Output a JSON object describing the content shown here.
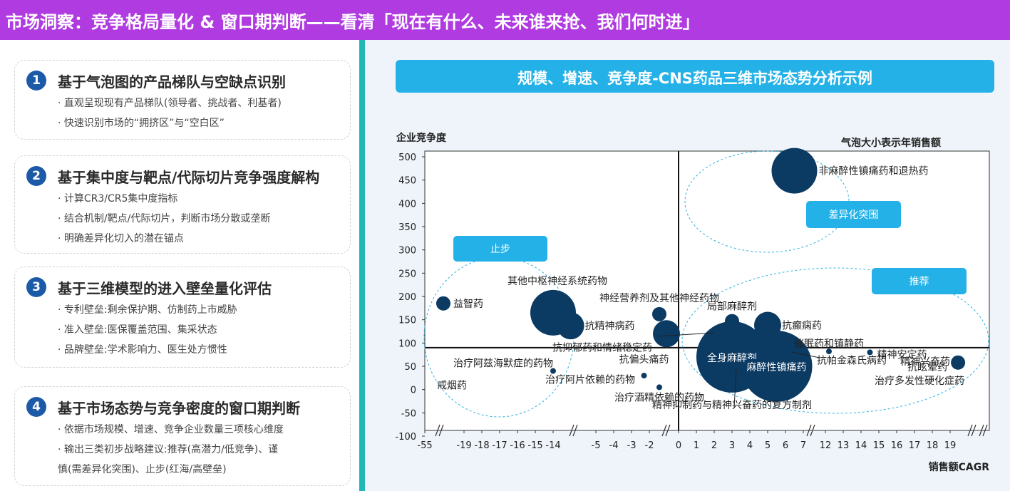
{
  "header": {
    "title": "市场洞察：竞争格局量化 & 窗口期判断——看清「现在有什么、未来谁来抢、我们何时进」"
  },
  "cards": [
    {
      "num": "1",
      "title": "基于气泡图的产品梯队与空缺点识别",
      "items": [
        "· 直观呈现现有产品梯队(领导者、挑战者、利基者)",
        "· 快速识别市场的“拥挤区”与“空白区”"
      ]
    },
    {
      "num": "2",
      "title": "基于集中度与靶点/代际切片竞争强度解构",
      "items": [
        "· 计算CR3/CR5集中度指标",
        "· 结合机制/靶点/代际切片，判断市场分散或垄断",
        "· 明确差异化切入的潜在锚点"
      ]
    },
    {
      "num": "3",
      "title": "基于三维模型的进入壁垒量化评估",
      "items": [
        "· 专利壁垒:剩余保护期、仿制药上市威胁",
        "· 准入壁垒:医保覆盖范围、集采状态",
        "· 品牌壁垒:学术影响力、医生处方惯性"
      ]
    },
    {
      "num": "4",
      "title": "基于市场态势与竞争密度的窗口期判断",
      "items": [
        "· 依据市场规模、增速、竞争企业数量三项核心维度",
        "· 输出三类初步战略建议:推荐(高潜力/低竞争)、谨",
        "慎(需差异化突围)、止步(红海/高壁垒)"
      ]
    }
  ],
  "chart_title": "规模、增速、竞争度-CNS药品三维市场态势分析示例",
  "chart_data": {
    "type": "scatter",
    "title": "规模、增速、竞争度-CNS药品三维市场态势分析示例",
    "ylabel": "企业竞争度",
    "xlabel": "销售额CAGR",
    "size_label": "气泡大小表示年销售额",
    "ylim": [
      -100,
      500
    ],
    "yticks": [
      "500",
      "450",
      "400",
      "350",
      "300",
      "250",
      "200",
      "150",
      "100",
      "50",
      "0",
      "-50",
      "-100"
    ],
    "xticks": [
      "-55",
      "-19",
      "-18",
      "-17",
      "-16",
      "-15",
      "-14",
      "-5",
      "-4",
      "-3",
      "-2",
      "0",
      "1",
      "2",
      "3",
      "4",
      "5",
      "6",
      "7",
      "12",
      "13",
      "14",
      "15",
      "16",
      "17",
      "18",
      "19"
    ],
    "broken_axis": true,
    "reference_lines": {
      "x": 0,
      "y": 90
    },
    "zones": [
      "止步",
      "差异化突围",
      "推荐"
    ],
    "points": [
      {
        "label": "非麻醉性镇痛药和退热药",
        "x": 6.5,
        "y": 470,
        "size": "large"
      },
      {
        "label": "益智药",
        "x": -20,
        "y": 185,
        "size": "small"
      },
      {
        "label": "其他中枢神经系统药物",
        "x": -14,
        "y": 165,
        "size": "large"
      },
      {
        "label": "抗精神病药",
        "x": -12.5,
        "y": 137,
        "size": "medium"
      },
      {
        "label": "神经营养剂及其他神经药物",
        "x": -1,
        "y": 162,
        "size": "small"
      },
      {
        "label": "抗抑郁药和情绪稳定药",
        "x": -0.5,
        "y": 120,
        "size": "medium"
      },
      {
        "label": "局部麻醉剂",
        "x": 3,
        "y": 147,
        "size": "small"
      },
      {
        "label": "抗癫痫药",
        "x": 5,
        "y": 138,
        "size": "medium"
      },
      {
        "label": "全身麻醉剂",
        "x": 3,
        "y": 70,
        "size": "xlarge"
      },
      {
        "label": "麻醉性镇痛药",
        "x": 5.5,
        "y": 50,
        "size": "xlarge"
      },
      {
        "label": "催眠药和镇静药",
        "x": 12.2,
        "y": 82,
        "size": "tiny"
      },
      {
        "label": "抗帕金森氏病药",
        "x": 7.5,
        "y": 72,
        "size": "none"
      },
      {
        "label": "精神安定药",
        "x": 14.5,
        "y": 80,
        "size": "tiny"
      },
      {
        "label": "抗眩晕药",
        "x": 19.3,
        "y": 58,
        "size": "small"
      },
      {
        "label": "精神兴奋药",
        "x": 19,
        "y": 35,
        "size": "none"
      },
      {
        "label": "治疗多发性硬化症药",
        "x": 19,
        "y": 12,
        "size": "none"
      },
      {
        "label": "治疗阿兹海默症的药物",
        "x": -14,
        "y": 40,
        "size": "tiny"
      },
      {
        "label": "治疗阿片依赖的药物",
        "x": -14,
        "y": 20,
        "size": "none"
      },
      {
        "label": "抗偏头痛药",
        "x": -2.3,
        "y": 30,
        "size": "tiny"
      },
      {
        "label": "治疗酒精依赖的药物",
        "x": -1,
        "y": 5,
        "size": "tiny"
      },
      {
        "label": "戒烟药",
        "x": -55,
        "y": 2,
        "size": "none"
      },
      {
        "label": "精神抑制药与精神兴奋药的复方制剂",
        "x": 3,
        "y": -40,
        "size": "none"
      }
    ]
  }
}
